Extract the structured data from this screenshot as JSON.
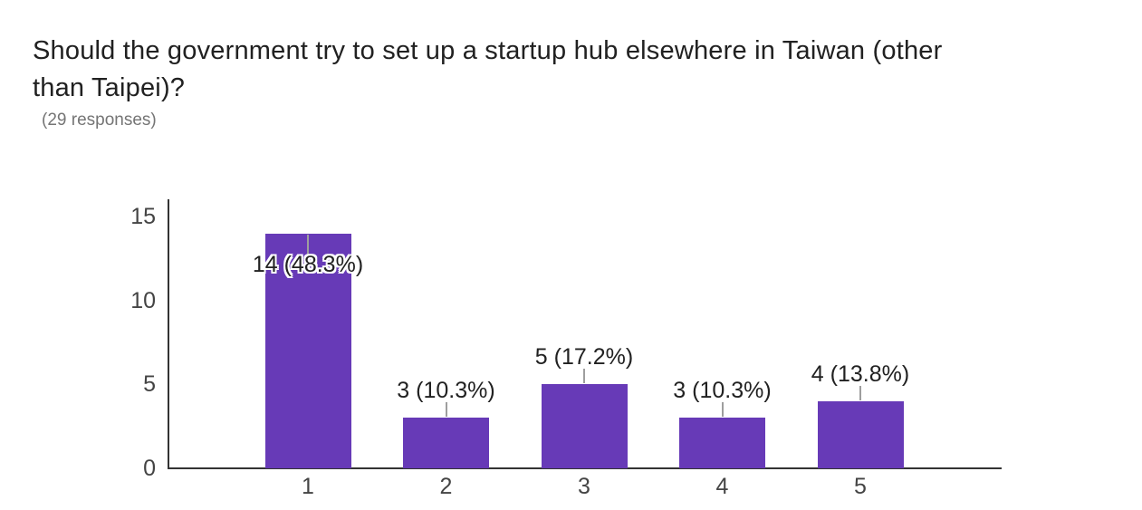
{
  "header": {
    "title": "Should the government try to set up a startup hub elsewhere in Taiwan (other than Taipei)?",
    "title_lines": [
      "Should the government try to set up a startup hub elsewhere in Taiwan (other",
      "than Taipei)?"
    ],
    "responses_label": "(29 responses)"
  },
  "chart_data": {
    "type": "bar",
    "title": "Should the government try to set up a startup hub elsewhere in Taiwan (other than Taipei)?",
    "subtitle": "(29 responses)",
    "total_responses": 29,
    "categories": [
      "1",
      "2",
      "3",
      "4",
      "5"
    ],
    "values": [
      14,
      3,
      5,
      3,
      4
    ],
    "percentages": [
      48.3,
      10.3,
      17.2,
      10.3,
      13.8
    ],
    "bar_labels": [
      "14 (48.3%)",
      "3 (10.3%)",
      "5 (17.2%)",
      "3 (10.3%)",
      "4 (13.8%)"
    ],
    "xlabel": "",
    "ylabel": "",
    "y_ticks": [
      0,
      5,
      10,
      15
    ],
    "ylim": [
      0,
      16
    ],
    "grid": false,
    "legend": "none",
    "colors": {
      "bar": "#673ab7",
      "axis_line": "#333333",
      "tick_label": "#444444",
      "annotation_text": "#212121",
      "annotation_leader": "#9e9e9e",
      "annotation_halo": "#ffffff",
      "title_text": "#212121",
      "subtitle_text": "#757575",
      "background": "#ffffff"
    }
  }
}
